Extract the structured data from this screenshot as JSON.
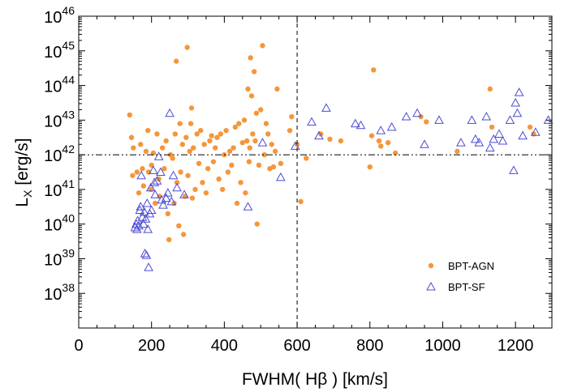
{
  "chart_data": {
    "type": "scatter",
    "xlabel": "FWHM( Hβ )  [km/s]",
    "ylabel": "L_X [erg/s]",
    "xlim": [
      0,
      1300
    ],
    "ylim": [
      37,
      46
    ],
    "yscale": "log10",
    "x_ticks": [
      0,
      200,
      400,
      600,
      800,
      1000,
      1200
    ],
    "y_ticks": [
      38,
      39,
      40,
      41,
      42,
      43,
      44,
      45,
      46
    ],
    "reference_lines": {
      "vertical_x": 600,
      "horizontal_y": 42
    },
    "legend_position": "lower-right",
    "series": [
      {
        "name": "BPT-AGN",
        "marker": "filled-circle",
        "color": "#f5963a",
        "points": [
          [
            140,
            43.15
          ],
          [
            145,
            42.5
          ],
          [
            148,
            41.4
          ],
          [
            150,
            42.2
          ],
          [
            160,
            41.5
          ],
          [
            165,
            40.9
          ],
          [
            170,
            42.3
          ],
          [
            175,
            41.6
          ],
          [
            178,
            41.1
          ],
          [
            185,
            42.1
          ],
          [
            190,
            42.7
          ],
          [
            192,
            41.5
          ],
          [
            198,
            41.0
          ],
          [
            200,
            41.7
          ],
          [
            205,
            42.05
          ],
          [
            210,
            40.6
          ],
          [
            215,
            42.6
          ],
          [
            220,
            41.3
          ],
          [
            222,
            40.8
          ],
          [
            230,
            42.2
          ],
          [
            235,
            41.6
          ],
          [
            240,
            42.4
          ],
          [
            245,
            40.3
          ],
          [
            248,
            39.55
          ],
          [
            252,
            42.0
          ],
          [
            258,
            41.9
          ],
          [
            262,
            40.6
          ],
          [
            265,
            42.6
          ],
          [
            268,
            44.7
          ],
          [
            270,
            41.2
          ],
          [
            275,
            39.95
          ],
          [
            278,
            42.9
          ],
          [
            280,
            41.5
          ],
          [
            285,
            42.3
          ],
          [
            288,
            39.7
          ],
          [
            292,
            40.8
          ],
          [
            295,
            42.5
          ],
          [
            298,
            45.1
          ],
          [
            300,
            41.4
          ],
          [
            305,
            42.1
          ],
          [
            308,
            42.9
          ],
          [
            310,
            43.35
          ],
          [
            312,
            40.75
          ],
          [
            315,
            42.2
          ],
          [
            320,
            41.0
          ],
          [
            325,
            42.6
          ],
          [
            330,
            41.75
          ],
          [
            335,
            42.7
          ],
          [
            340,
            41.2
          ],
          [
            345,
            42.3
          ],
          [
            350,
            40.9
          ],
          [
            355,
            41.6
          ],
          [
            360,
            42.4
          ],
          [
            365,
            42.55
          ],
          [
            370,
            41.8
          ],
          [
            375,
            42.2
          ],
          [
            380,
            42.5
          ],
          [
            385,
            41.3
          ],
          [
            390,
            42.6
          ],
          [
            395,
            41.0
          ],
          [
            400,
            42.0
          ],
          [
            405,
            42.7
          ],
          [
            410,
            41.5
          ],
          [
            415,
            42.1
          ],
          [
            420,
            41.7
          ],
          [
            425,
            42.2
          ],
          [
            430,
            42.8
          ],
          [
            435,
            40.6
          ],
          [
            440,
            42.9
          ],
          [
            445,
            41.2
          ],
          [
            450,
            42.35
          ],
          [
            455,
            43.0
          ],
          [
            458,
            40.9
          ],
          [
            462,
            42.4
          ],
          [
            465,
            43.9
          ],
          [
            468,
            41.8
          ],
          [
            470,
            42.2
          ],
          [
            472,
            44.8
          ],
          [
            475,
            43.7
          ],
          [
            478,
            42.6
          ],
          [
            482,
            44.4
          ],
          [
            485,
            42.4
          ],
          [
            488,
            43.2
          ],
          [
            490,
            40.0
          ],
          [
            495,
            41.7
          ],
          [
            500,
            43.3
          ],
          [
            505,
            45.15
          ],
          [
            510,
            42.0
          ],
          [
            515,
            42.9
          ],
          [
            520,
            42.6
          ],
          [
            525,
            41.6
          ],
          [
            530,
            42.3
          ],
          [
            535,
            41.65
          ],
          [
            540,
            42.1
          ],
          [
            545,
            43.9
          ],
          [
            555,
            41.75
          ],
          [
            580,
            42.7
          ],
          [
            585,
            43.1
          ],
          [
            600,
            42.3
          ],
          [
            610,
            40.65
          ],
          [
            625,
            41.9
          ],
          [
            665,
            42.6
          ],
          [
            690,
            42.45
          ],
          [
            720,
            42.4
          ],
          [
            800,
            41.65
          ],
          [
            805,
            42.55
          ],
          [
            810,
            44.45
          ],
          [
            825,
            42.4
          ],
          [
            830,
            42.25
          ],
          [
            850,
            42.35
          ],
          [
            870,
            42.05
          ],
          [
            940,
            43.1
          ],
          [
            955,
            42.95
          ],
          [
            1040,
            42.1
          ],
          [
            1130,
            43.9
          ],
          [
            1135,
            42.8
          ],
          [
            1240,
            42.8
          ],
          [
            1250,
            42.6
          ]
        ]
      },
      {
        "name": "BPT-SF",
        "marker": "open-triangle",
        "color": "#4b4bd4",
        "points": [
          [
            155,
            39.9
          ],
          [
            158,
            40.0
          ],
          [
            160,
            39.85
          ],
          [
            162,
            40.1
          ],
          [
            165,
            39.95
          ],
          [
            168,
            40.4
          ],
          [
            170,
            40.5
          ],
          [
            172,
            41.4
          ],
          [
            175,
            40.2
          ],
          [
            178,
            40.0
          ],
          [
            180,
            40.35
          ],
          [
            182,
            39.15
          ],
          [
            184,
            40.15
          ],
          [
            186,
            39.1
          ],
          [
            188,
            40.6
          ],
          [
            190,
            39.85
          ],
          [
            192,
            38.75
          ],
          [
            195,
            40.3
          ],
          [
            198,
            41.05
          ],
          [
            200,
            40.4
          ],
          [
            205,
            41.55
          ],
          [
            208,
            41.2
          ],
          [
            210,
            40.85
          ],
          [
            215,
            41.25
          ],
          [
            220,
            41.95
          ],
          [
            225,
            41.5
          ],
          [
            228,
            40.7
          ],
          [
            232,
            40.55
          ],
          [
            240,
            40.75
          ],
          [
            245,
            40.9
          ],
          [
            250,
            43.2
          ],
          [
            255,
            40.65
          ],
          [
            260,
            41.4
          ],
          [
            270,
            41.05
          ],
          [
            290,
            40.85
          ],
          [
            465,
            40.5
          ],
          [
            505,
            42.35
          ],
          [
            555,
            41.35
          ],
          [
            595,
            42.25
          ],
          [
            640,
            42.95
          ],
          [
            660,
            42.55
          ],
          [
            680,
            43.35
          ],
          [
            760,
            42.9
          ],
          [
            775,
            42.85
          ],
          [
            830,
            42.7
          ],
          [
            860,
            42.8
          ],
          [
            900,
            43.1
          ],
          [
            930,
            43.2
          ],
          [
            950,
            42.3
          ],
          [
            990,
            43.0
          ],
          [
            1050,
            42.35
          ],
          [
            1080,
            43.0
          ],
          [
            1090,
            42.45
          ],
          [
            1100,
            42.35
          ],
          [
            1120,
            43.1
          ],
          [
            1130,
            42.2
          ],
          [
            1140,
            42.45
          ],
          [
            1155,
            42.6
          ],
          [
            1165,
            42.4
          ],
          [
            1185,
            43.0
          ],
          [
            1195,
            41.55
          ],
          [
            1200,
            43.5
          ],
          [
            1205,
            43.2
          ],
          [
            1210,
            43.8
          ],
          [
            1220,
            42.55
          ],
          [
            1255,
            42.65
          ],
          [
            1290,
            43.0
          ]
        ]
      }
    ]
  }
}
